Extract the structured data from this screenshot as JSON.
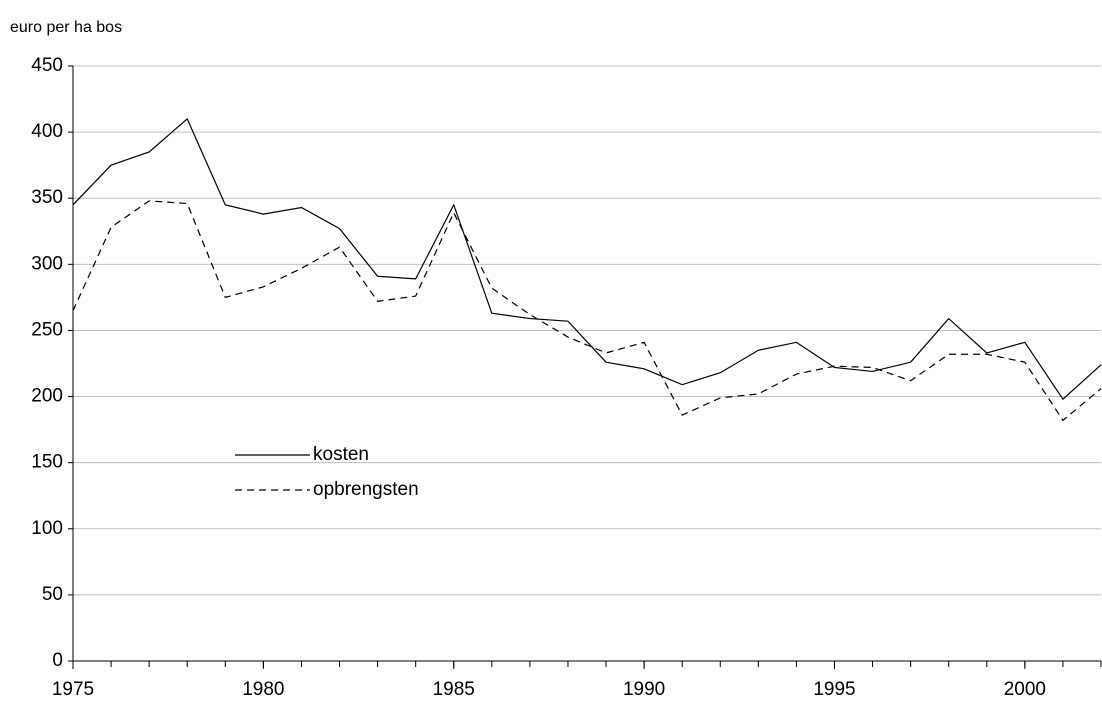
{
  "chart_data": {
    "type": "line",
    "y_label": "euro per ha bos",
    "x": [
      1975,
      1976,
      1977,
      1978,
      1979,
      1980,
      1981,
      1982,
      1983,
      1984,
      1985,
      1986,
      1987,
      1988,
      1989,
      1990,
      1991,
      1992,
      1993,
      1994,
      1995,
      1996,
      1997,
      1998,
      1999,
      2000,
      2001,
      2002
    ],
    "series": [
      {
        "name": "kosten",
        "color": "#000000",
        "dash": "solid",
        "values": [
          345,
          375,
          385,
          410,
          345,
          338,
          343,
          327,
          291,
          289,
          345,
          263,
          259,
          257,
          226,
          221,
          209,
          218,
          235,
          241,
          222,
          219,
          226,
          259,
          233,
          241,
          198,
          224
        ]
      },
      {
        "name": "opbrengsten",
        "color": "#000000",
        "dash": "dashed",
        "values": [
          265,
          328,
          348,
          346,
          275,
          283,
          297,
          313,
          272,
          276,
          339,
          282,
          262,
          245,
          233,
          241,
          186,
          199,
          202,
          217,
          223,
          222,
          212,
          232,
          232,
          226,
          182,
          206
        ]
      }
    ],
    "xlim": [
      1975,
      2002
    ],
    "xticks": [
      1975,
      1980,
      1985,
      1990,
      1995,
      2000
    ],
    "ylim": [
      0,
      450
    ],
    "yticks": [
      0,
      50,
      100,
      150,
      200,
      250,
      300,
      350,
      400,
      450
    ],
    "grid": true
  }
}
